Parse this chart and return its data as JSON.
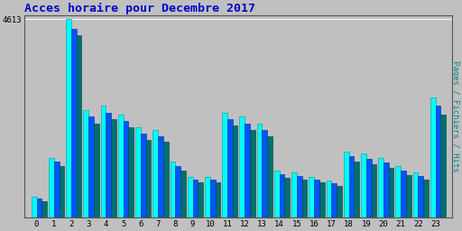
{
  "title": "Acces horaire pour Decembre 2017",
  "ylabel_right": "Pages / Fichiers / Hits",
  "ytick_label": "4613",
  "hours": [
    0,
    1,
    2,
    3,
    4,
    5,
    6,
    7,
    8,
    9,
    10,
    11,
    12,
    13,
    14,
    15,
    16,
    17,
    18,
    19,
    20,
    21,
    22,
    23
  ],
  "hits": [
    500,
    1400,
    4613,
    2500,
    2600,
    2400,
    2100,
    2050,
    1300,
    950,
    950,
    2450,
    2350,
    2200,
    1100,
    1050,
    950,
    870,
    1550,
    1500,
    1400,
    1200,
    1050,
    2800
  ],
  "fichiers": [
    440,
    1300,
    4400,
    2350,
    2450,
    2250,
    1950,
    1900,
    1200,
    880,
    880,
    2300,
    2200,
    2050,
    1020,
    970,
    880,
    800,
    1430,
    1380,
    1290,
    1100,
    980,
    2600
  ],
  "pages": [
    390,
    1200,
    4250,
    2200,
    2300,
    2100,
    1820,
    1780,
    1100,
    820,
    820,
    2150,
    2050,
    1900,
    940,
    900,
    820,
    740,
    1300,
    1250,
    1170,
    1000,
    900,
    2400
  ],
  "color_hits": "#00FFFF",
  "color_fichiers": "#0055FF",
  "color_pages": "#007070",
  "title_color": "#0000CC",
  "ylabel_color": "#008888",
  "background_color": "#C0C0C0",
  "plot_bg_color": "#C0C0C0",
  "ylim_max": 4613,
  "bar_width": 0.3
}
